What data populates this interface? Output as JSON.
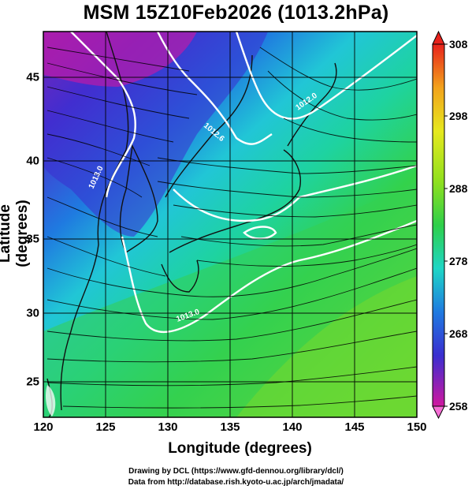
{
  "title": "MSM 15Z10Feb2026 (1013.2hPa)",
  "x_axis": {
    "label": "Longitude (degrees)",
    "ticks": [
      "120",
      "125",
      "130",
      "135",
      "140",
      "145",
      "150"
    ]
  },
  "y_axis": {
    "label": "Latitude  (degrees)",
    "ticks": [
      "45",
      "40",
      "35",
      "30",
      "25"
    ]
  },
  "colorbar": {
    "ticks": [
      "308",
      "298",
      "288",
      "278",
      "268",
      "258"
    ],
    "range": [
      258,
      308
    ]
  },
  "contour_labels": [
    "1013.0",
    "1012.6",
    "1012.0",
    "1013.0"
  ],
  "credits": {
    "line1": "Drawing by DCL (https://www.gfd-dennou.org/library/dcl/)",
    "line2": "Data from http://database.rish.kyoto-u.ac.jp/arch/jmadata/"
  },
  "colors": {
    "cold": "#c8199c",
    "cool": "#2a4fd6",
    "mid": "#1fd3d3",
    "warm": "#37c84a",
    "hot": "#e8e020"
  }
}
